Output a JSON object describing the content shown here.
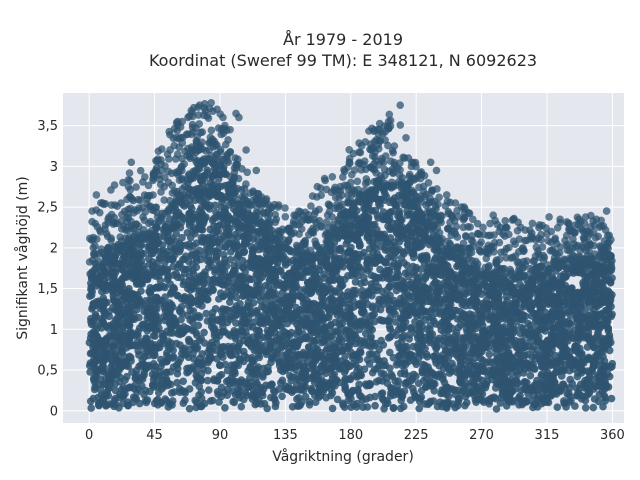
{
  "chart_data": {
    "type": "scatter",
    "title_line1": "År 1979 - 2019",
    "title_line2": "Koordinat (Sweref 99 TM): E 348121, N 6092623",
    "xlabel": "Vågriktning (grader)",
    "ylabel": "Signifikant våghöjd (m)",
    "xlim": [
      -18,
      368
    ],
    "ylim": [
      -0.15,
      3.9
    ],
    "x_ticks": [
      0,
      45,
      90,
      135,
      180,
      225,
      270,
      315,
      360
    ],
    "y_ticks": [
      0,
      0.5,
      1,
      1.5,
      2,
      2.5,
      3,
      3.5
    ],
    "y_tick_labels": [
      "0",
      "0,5",
      "1",
      "1,5",
      "2",
      "2,5",
      "3",
      "3,5"
    ],
    "grid": true,
    "colors": {
      "marker": "#2e5470",
      "plot_bg": "#e5e7ef",
      "grid": "#ffffff"
    },
    "envelope": {
      "direction": [
        0,
        10,
        20,
        30,
        40,
        50,
        60,
        70,
        80,
        85,
        90,
        95,
        100,
        110,
        120,
        130,
        140,
        150,
        160,
        170,
        180,
        190,
        200,
        210,
        215,
        220,
        230,
        240,
        250,
        260,
        270,
        280,
        290,
        300,
        310,
        320,
        330,
        340,
        350,
        360
      ],
      "dense_upper": [
        1.8,
        1.85,
        1.95,
        2.05,
        2.15,
        2.35,
        2.6,
        2.85,
        3.05,
        3.1,
        3.0,
        2.85,
        2.65,
        2.4,
        2.2,
        2.05,
        1.95,
        1.9,
        1.95,
        2.15,
        2.45,
        2.65,
        2.75,
        2.75,
        2.7,
        2.6,
        2.35,
        2.1,
        1.9,
        1.75,
        1.65,
        1.6,
        1.6,
        1.65,
        1.7,
        1.75,
        1.8,
        1.8,
        1.85,
        1.9
      ],
      "max_height": [
        2.4,
        2.65,
        2.85,
        3.05,
        2.9,
        3.3,
        3.55,
        3.75,
        3.8,
        3.78,
        3.7,
        3.5,
        3.2,
        2.9,
        2.6,
        2.55,
        2.5,
        2.6,
        2.85,
        2.9,
        3.3,
        3.5,
        3.55,
        3.75,
        3.5,
        3.25,
        2.9,
        2.75,
        2.6,
        2.5,
        2.3,
        2.35,
        2.4,
        2.25,
        2.35,
        2.4,
        2.35,
        2.4,
        2.45,
        2.1
      ]
    },
    "outliers": [
      {
        "x": 2,
        "y": 2.45
      },
      {
        "x": 5,
        "y": 2.65
      },
      {
        "x": 8,
        "y": 2.55
      },
      {
        "x": 13,
        "y": 2.35
      },
      {
        "x": 18,
        "y": 2.3
      },
      {
        "x": 22,
        "y": 2.55
      },
      {
        "x": 27,
        "y": 2.75
      },
      {
        "x": 29,
        "y": 3.05
      },
      {
        "x": 40,
        "y": 2.6
      },
      {
        "x": 44,
        "y": 2.85
      },
      {
        "x": 50,
        "y": 2.95
      },
      {
        "x": 54,
        "y": 3.15
      },
      {
        "x": 60,
        "y": 3.35
      },
      {
        "x": 64,
        "y": 3.55
      },
      {
        "x": 68,
        "y": 3.6
      },
      {
        "x": 72,
        "y": 3.72
      },
      {
        "x": 76,
        "y": 3.75
      },
      {
        "x": 80,
        "y": 3.68
      },
      {
        "x": 84,
        "y": 3.78
      },
      {
        "x": 88,
        "y": 3.7
      },
      {
        "x": 92,
        "y": 3.6
      },
      {
        "x": 97,
        "y": 3.45
      },
      {
        "x": 101,
        "y": 3.65
      },
      {
        "x": 103,
        "y": 3.6
      },
      {
        "x": 108,
        "y": 3.2
      },
      {
        "x": 115,
        "y": 2.95
      },
      {
        "x": 122,
        "y": 2.6
      },
      {
        "x": 130,
        "y": 2.5
      },
      {
        "x": 141,
        "y": 2.4
      },
      {
        "x": 150,
        "y": 2.35
      },
      {
        "x": 157,
        "y": 2.75
      },
      {
        "x": 162,
        "y": 2.85
      },
      {
        "x": 173,
        "y": 2.7
      },
      {
        "x": 180,
        "y": 2.8
      },
      {
        "x": 186,
        "y": 3.05
      },
      {
        "x": 190,
        "y": 3.3
      },
      {
        "x": 194,
        "y": 3.2
      },
      {
        "x": 199,
        "y": 3.45
      },
      {
        "x": 202,
        "y": 3.4
      },
      {
        "x": 206,
        "y": 3.55
      },
      {
        "x": 210,
        "y": 3.25
      },
      {
        "x": 214,
        "y": 3.75
      },
      {
        "x": 218,
        "y": 3.35
      },
      {
        "x": 222,
        "y": 3.05
      },
      {
        "x": 228,
        "y": 2.85
      },
      {
        "x": 235,
        "y": 3.05
      },
      {
        "x": 239,
        "y": 2.95
      },
      {
        "x": 246,
        "y": 2.65
      },
      {
        "x": 252,
        "y": 2.55
      },
      {
        "x": 258,
        "y": 2.5
      },
      {
        "x": 264,
        "y": 2.35
      },
      {
        "x": 271,
        "y": 2.25
      },
      {
        "x": 278,
        "y": 2.4
      },
      {
        "x": 283,
        "y": 2.25
      },
      {
        "x": 292,
        "y": 2.35
      },
      {
        "x": 297,
        "y": 2.25
      },
      {
        "x": 305,
        "y": 2.3
      },
      {
        "x": 311,
        "y": 2.1
      },
      {
        "x": 318,
        "y": 2.2
      },
      {
        "x": 324,
        "y": 2.35
      },
      {
        "x": 330,
        "y": 2.3
      },
      {
        "x": 337,
        "y": 2.35
      },
      {
        "x": 343,
        "y": 2.2
      },
      {
        "x": 349,
        "y": 2.35
      },
      {
        "x": 356,
        "y": 2.45
      },
      {
        "x": 359,
        "y": 2.1
      }
    ]
  }
}
